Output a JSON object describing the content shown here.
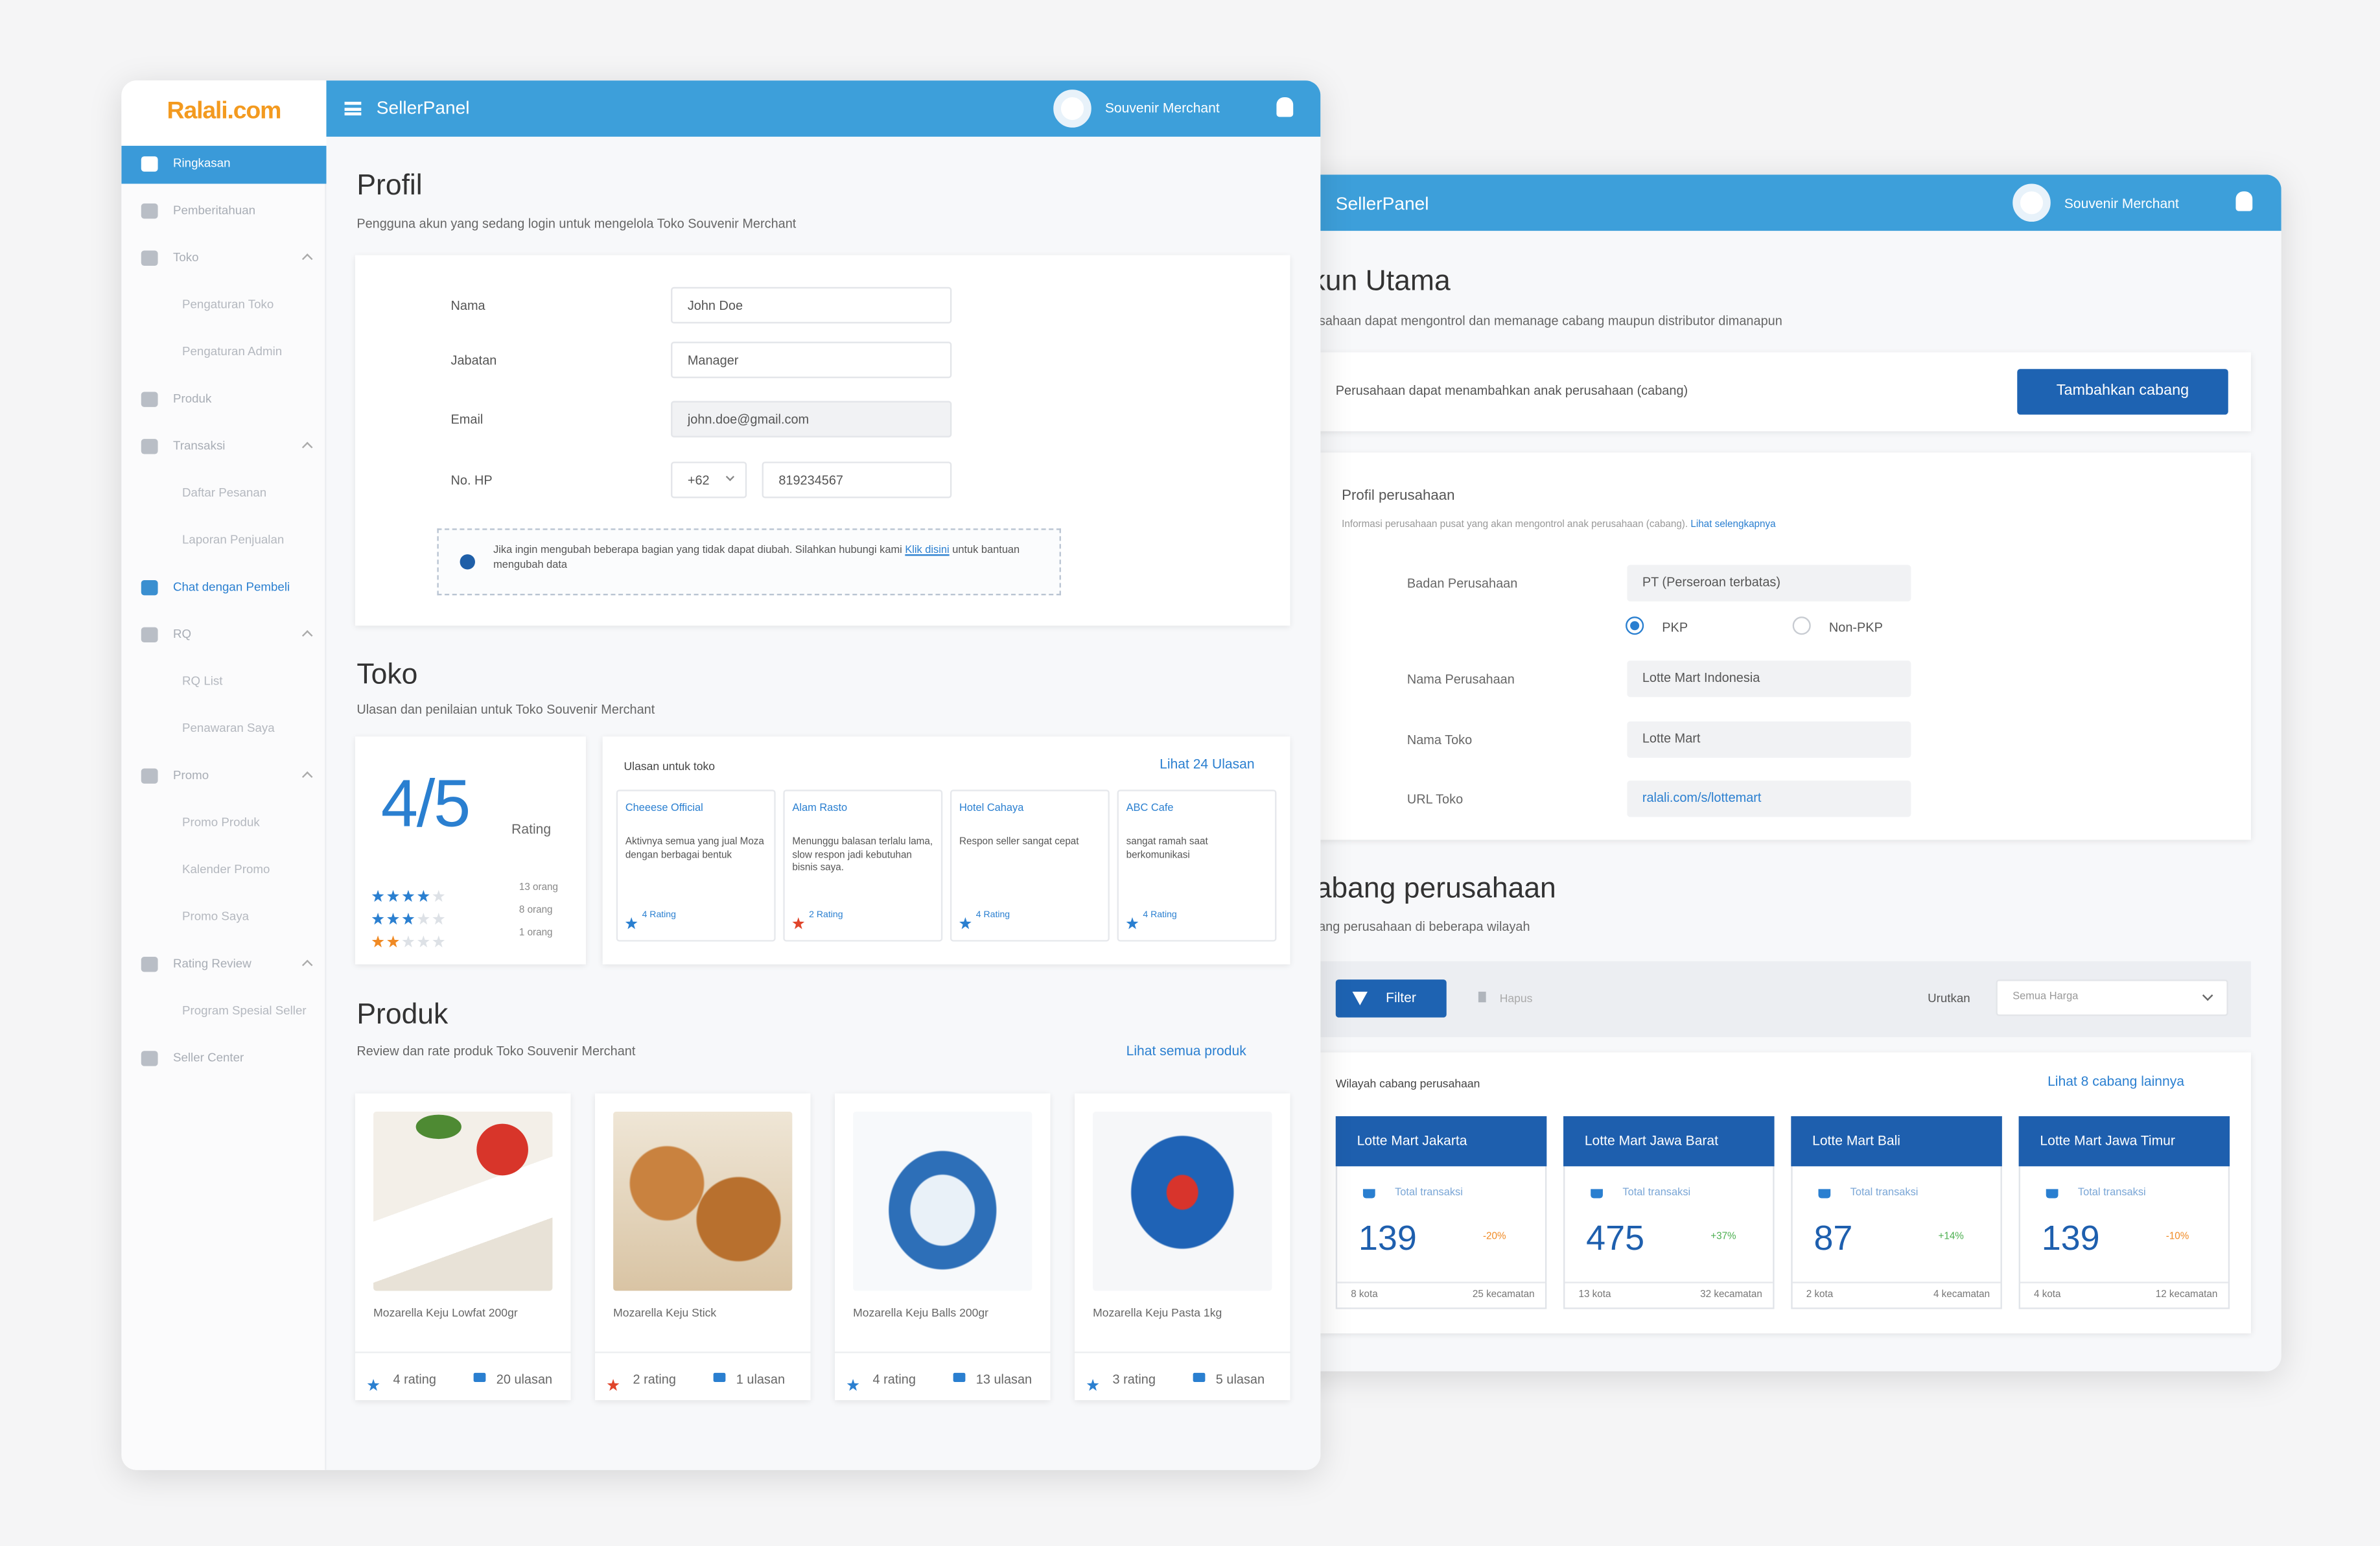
{
  "left_panel": {
    "logo": "Ralali.com",
    "topbar": {
      "title": "SellerPanel",
      "user": "Souvenir Merchant"
    },
    "sidebar": [
      {
        "label": "Ringkasan"
      },
      {
        "label": "Pemberitahuan"
      },
      {
        "label": "Toko",
        "items": [
          "Pengaturan Toko",
          "Pengaturan Admin"
        ]
      },
      {
        "label": "Produk"
      },
      {
        "label": "Transaksi",
        "items": [
          "Daftar Pesanan",
          "Laporan Penjualan"
        ]
      },
      {
        "label": "Chat dengan Pembeli"
      },
      {
        "label": "RQ",
        "items": [
          "RQ List",
          "Penawaran Saya"
        ]
      },
      {
        "label": "Promo",
        "items": [
          "Promo Produk",
          "Kalender Promo",
          "Promo Saya"
        ]
      },
      {
        "label": "Rating Review",
        "items": [
          "Program Spesial Seller"
        ]
      },
      {
        "label": "Seller Center"
      }
    ],
    "profil": {
      "title": "Profil",
      "subtitle": "Pengguna akun yang sedang login untuk mengelola Toko Souvenir Merchant",
      "fields": [
        {
          "label": "Nama",
          "value": "John Doe"
        },
        {
          "label": "Jabatan",
          "value": "Manager"
        },
        {
          "label": "Email",
          "value": "john.doe@gmail.com"
        }
      ],
      "phone": {
        "label": "No. HP",
        "code": "+62",
        "number": "819234567"
      },
      "note": {
        "text": "Jika ingin mengubah beberapa bagian yang tidak dapat diubah. Silahkan hubungi kami",
        "link": "Klik disini",
        "after": "untuk bantuan mengubah data"
      }
    },
    "toko": {
      "title": "Toko",
      "subtitle": "Ulasan dan penilaian untuk Toko Souvenir Merchant",
      "rating": "4/5",
      "rating_label": "Rating",
      "rating_rows": [
        "13 orang",
        "8 orang",
        "1 orang"
      ],
      "reviews_title": "Ulasan untuk toko",
      "reviews_link": "Lihat 24 Ulasan",
      "reviews": [
        {
          "name": "Cheeese Official",
          "text": "Aktivnya semua yang jual Moza dengan berbagai bentuk",
          "rating": "4 Rating"
        },
        {
          "name": "Alam Rasto",
          "text": "Menunggu balasan terlalu lama, slow respon jadi kebutuhan bisnis saya.",
          "rating": "2 Rating"
        },
        {
          "name": "Hotel Cahaya",
          "text": "Respon seller sangat cepat",
          "rating": "4 Rating"
        },
        {
          "name": "ABC Cafe",
          "text": "sangat ramah saat berkomunikasi",
          "rating": "4 Rating"
        }
      ]
    },
    "produk": {
      "title": "Produk",
      "subtitle": "Review dan rate produk Toko Souvenir Merchant",
      "link": "Lihat semua produk",
      "items": [
        {
          "name": "Mozarella Keju Lowfat 200gr",
          "rating": "4 rating",
          "reviews": "20 ulasan"
        },
        {
          "name": "Mozarella Keju Stick",
          "rating": "2 rating",
          "reviews": "1 ulasan"
        },
        {
          "name": "Mozarella Keju Balls 200gr",
          "rating": "4 rating",
          "reviews": "13 ulasan"
        },
        {
          "name": "Mozarella Keju Pasta 1kg",
          "rating": "3 rating",
          "reviews": "5 ulasan"
        }
      ]
    }
  },
  "right_panel": {
    "topbar": {
      "title": "SellerPanel",
      "user": "Souvenir Merchant"
    },
    "title": "Akun Utama",
    "subtitle": "Perusahaan dapat mengontrol dan memanage cabang maupun distributor dimanapun",
    "add_bar": {
      "text": "Perusahaan dapat menambahkan anak perusahaan (cabang)",
      "button": "Tambahkan cabang"
    },
    "company": {
      "title": "Profil perusahaan",
      "info": "Informasi perusahaan pusat yang akan mengontrol anak perusahaan (cabang).",
      "info_link": "Lihat selengkapnya",
      "entity_label": "Badan Perusahaan",
      "entity_value": "PT (Perseroan terbatas)",
      "tax_options": [
        "PKP",
        "Non-PKP"
      ],
      "fields": [
        {
          "label": "Nama Perusahaan",
          "value": "Lotte Mart Indonesia"
        },
        {
          "label": "Nama Toko",
          "value": "Lotte Mart"
        },
        {
          "label": "URL Toko",
          "value": "ralali.com/s/lottemart"
        }
      ]
    },
    "branches_section": {
      "title": "Cabang perusahaan",
      "subtitle": "Cabang perusahaan di beberapa wilayah",
      "filter": "Filter",
      "delete": "Hapus",
      "sort_label": "Urutkan",
      "sort_value": "Semua Harga",
      "list_title": "Wilayah cabang perusahaan",
      "list_link": "Lihat 8 cabang lainnya",
      "metric_label": "Total transaksi",
      "branches": [
        {
          "name": "Lotte Mart Jakarta",
          "total": 139,
          "change": "-20%",
          "cities": "8 kota",
          "districts": "25 kecamatan"
        },
        {
          "name": "Lotte Mart Jawa Barat",
          "total": 475,
          "change": "+37%",
          "cities": "13 kota",
          "districts": "32 kecamatan"
        },
        {
          "name": "Lotte Mart Bali",
          "total": 87,
          "change": "+14%",
          "cities": "2 kota",
          "districts": "4 kecamatan"
        },
        {
          "name": "Lotte Mart Jawa Timur",
          "total": 139,
          "change": "-10%",
          "cities": "4 kota",
          "districts": "12 kecamatan"
        }
      ]
    }
  }
}
